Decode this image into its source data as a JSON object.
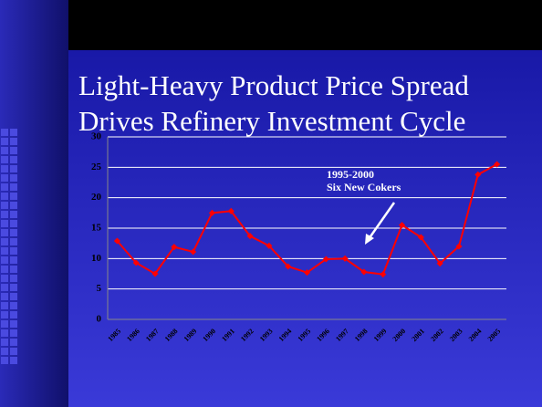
{
  "chart_data": {
    "type": "line",
    "title": [
      "Light-Heavy Product Price Spread",
      "Drives Refinery Investment Cycle"
    ],
    "annotation": [
      "1995-2000",
      "Six New Cokers"
    ],
    "categories": [
      "1985",
      "1986",
      "1987",
      "1988",
      "1989",
      "1990",
      "1991",
      "1992",
      "1993",
      "1994",
      "1995",
      "1996",
      "1997",
      "1998",
      "1999",
      "2000",
      "2001",
      "2002",
      "2003",
      "2004",
      "2005"
    ],
    "values": [
      12.9,
      9.3,
      7.5,
      11.9,
      11.1,
      17.5,
      17.8,
      13.7,
      12.1,
      8.7,
      7.7,
      9.9,
      10.0,
      7.8,
      7.4,
      15.5,
      13.5,
      9.2,
      12.0,
      23.8,
      25.5
    ],
    "color": "#ff0000",
    "ylim": [
      0,
      30
    ],
    "yticks": [
      0,
      5,
      10,
      15,
      20,
      25,
      30
    ],
    "grid": true
  }
}
